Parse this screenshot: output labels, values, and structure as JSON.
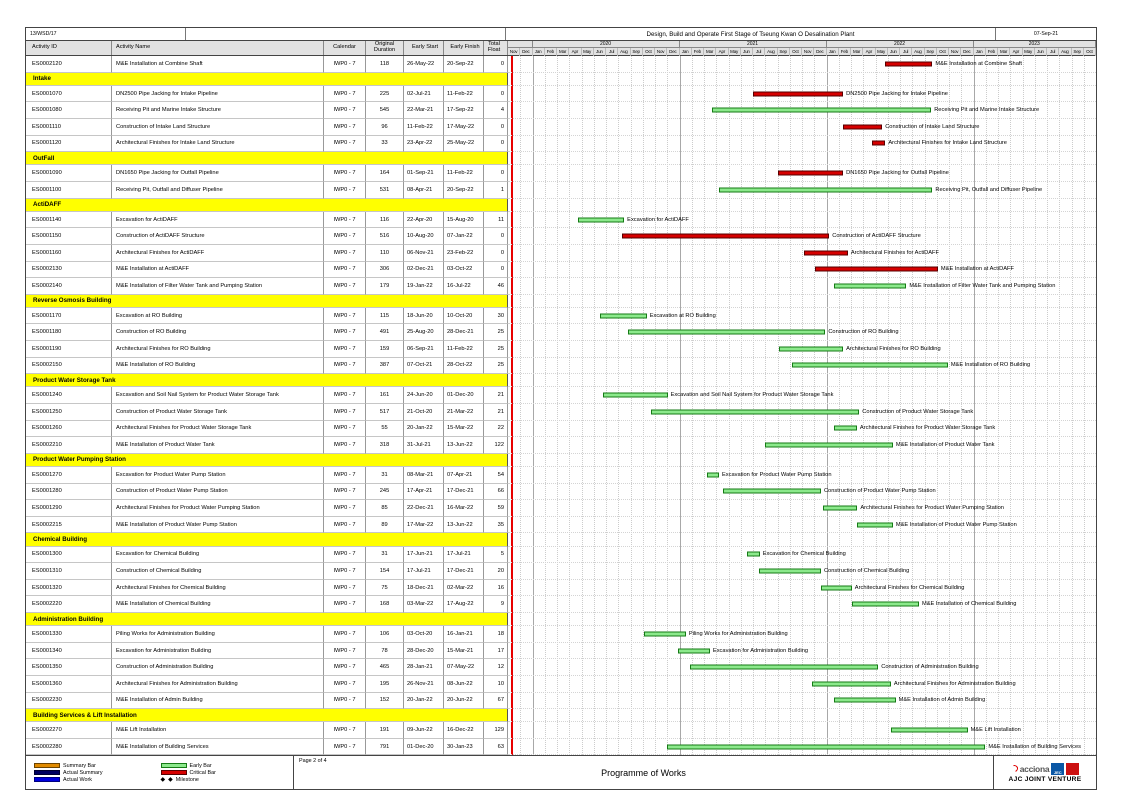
{
  "header": {
    "contract_no": "13/WSD/17",
    "title": "Design, Build and Operate First Stage of Tseung Kwan O Desalination Plant",
    "date": "07-Sep-21"
  },
  "columns": {
    "activity_id": "Activity ID",
    "activity_name": "Activity Name",
    "calendar": "Calendar",
    "original_duration": "Original Duration",
    "early_start": "Early Start",
    "early_finish": "Early Finish",
    "total_float": "Total Float"
  },
  "chart_data": {
    "type": "bar",
    "subtype": "gantt",
    "title": "Programme of Works",
    "timeline": {
      "start": "Nov-2019",
      "end": "Oct-2023",
      "months_total": 48,
      "year_segments": [
        {
          "label": "",
          "months": 2
        },
        {
          "label": "2020",
          "months": 12
        },
        {
          "label": "2021",
          "months": 12
        },
        {
          "label": "2022",
          "months": 12
        },
        {
          "label": "2023",
          "months": 10
        }
      ],
      "month_labels": [
        "Nov",
        "Dec",
        "Jan",
        "Feb",
        "Mar",
        "Apr",
        "May",
        "Jun",
        "Jul",
        "Aug",
        "Sep",
        "Oct",
        "Nov",
        "Dec",
        "Jan",
        "Feb",
        "Mar",
        "Apr",
        "May",
        "Jun",
        "Jul",
        "Aug",
        "Sep",
        "Oct",
        "Nov",
        "Dec",
        "Jan",
        "Feb",
        "Mar",
        "Apr",
        "May",
        "Jun",
        "Jul",
        "Aug",
        "Sep",
        "Oct",
        "Nov",
        "Dec",
        "Jan",
        "Feb",
        "Mar",
        "Apr",
        "May",
        "Jun",
        "Jul",
        "Aug",
        "Sep",
        "Oct"
      ],
      "data_date_line": "Nov-2019"
    },
    "sections": [
      {
        "band": null,
        "tasks": [
          {
            "id": "ES0002120",
            "name": "M&E Installation at Combine Shaft",
            "calendar": "IWP0 - 7",
            "duration": 118,
            "start": "26-May-22",
            "finish": "20-Sep-22",
            "float": 0
          }
        ]
      },
      {
        "band": "Intake",
        "tasks": [
          {
            "id": "ES0001070",
            "name": "DN2500 Pipe Jacking for Intake Pipeline",
            "calendar": "IWP0 - 7",
            "duration": 225,
            "start": "02-Jul-21",
            "finish": "11-Feb-22",
            "float": 0
          },
          {
            "id": "ES0001080",
            "name": "Receiving Pit and Marine Intake Structure",
            "calendar": "IWP0 - 7",
            "duration": 545,
            "start": "22-Mar-21",
            "finish": "17-Sep-22",
            "float": 4
          },
          {
            "id": "ES0001110",
            "name": "Construction of Intake Land Structure",
            "calendar": "IWP0 - 7",
            "duration": 96,
            "start": "11-Feb-22",
            "finish": "17-May-22",
            "float": 0
          },
          {
            "id": "ES0001120",
            "name": "Architectural Finishes for Intake Land Structure",
            "calendar": "IWP0 - 7",
            "duration": 33,
            "start": "23-Apr-22",
            "finish": "25-May-22",
            "float": 0
          }
        ]
      },
      {
        "band": "OutFall",
        "tasks": [
          {
            "id": "ES0001090",
            "name": "DN1650 Pipe Jacking for Outfall Pipeline",
            "calendar": "IWP0 - 7",
            "duration": 164,
            "start": "01-Sep-21",
            "finish": "11-Feb-22",
            "float": 0
          },
          {
            "id": "ES0001100",
            "name": "Receiving Pit, Outfall and Diffuser Pipeline",
            "calendar": "IWP0 - 7",
            "duration": 531,
            "start": "08-Apr-21",
            "finish": "20-Sep-22",
            "float": 1
          }
        ]
      },
      {
        "band": "ActiDAFF",
        "tasks": [
          {
            "id": "ES0001140",
            "name": "Excavation for ActiDAFF",
            "calendar": "IWP0 - 7",
            "duration": 116,
            "start": "22-Apr-20",
            "finish": "15-Aug-20",
            "float": 11
          },
          {
            "id": "ES0001150",
            "name": "Construction of ActiDAFF Structure",
            "calendar": "IWP0 - 7",
            "duration": 516,
            "start": "10-Aug-20",
            "finish": "07-Jan-22",
            "float": 0
          },
          {
            "id": "ES0001160",
            "name": "Architectural Finishes for ActiDAFF",
            "calendar": "IWP0 - 7",
            "duration": 110,
            "start": "06-Nov-21",
            "finish": "23-Feb-22",
            "float": 0
          },
          {
            "id": "ES0002130",
            "name": "M&E Installation at ActiDAFF",
            "calendar": "IWP0 - 7",
            "duration": 306,
            "start": "02-Dec-21",
            "finish": "03-Oct-22",
            "float": 0
          },
          {
            "id": "ES0002140",
            "name": "M&E Installation of Filter Water Tank and Pumping Station",
            "calendar": "IWP0 - 7",
            "duration": 179,
            "start": "19-Jan-22",
            "finish": "16-Jul-22",
            "float": 46
          }
        ]
      },
      {
        "band": "Reverse Osmosis Building",
        "tasks": [
          {
            "id": "ES0001170",
            "name": "Excavation at RO Building",
            "calendar": "IWP0 - 7",
            "duration": 115,
            "start": "18-Jun-20",
            "finish": "10-Oct-20",
            "float": 30
          },
          {
            "id": "ES0001180",
            "name": "Construction of RO Building",
            "calendar": "IWP0 - 7",
            "duration": 491,
            "start": "25-Aug-20",
            "finish": "28-Dec-21",
            "float": 25
          },
          {
            "id": "ES0001190",
            "name": "Architectural Finishes for RO Building",
            "calendar": "IWP0 - 7",
            "duration": 159,
            "start": "06-Sep-21",
            "finish": "11-Feb-22",
            "float": 25
          },
          {
            "id": "ES0002150",
            "name": "M&E Installation of RO Building",
            "calendar": "IWP0 - 7",
            "duration": 387,
            "start": "07-Oct-21",
            "finish": "28-Oct-22",
            "float": 25
          }
        ]
      },
      {
        "band": "Product Water Storage Tank",
        "tasks": [
          {
            "id": "ES0001240",
            "name": "Excavation and Soil Nail System for Product Water Storage Tank",
            "calendar": "IWP0 - 7",
            "duration": 161,
            "start": "24-Jun-20",
            "finish": "01-Dec-20",
            "float": 21
          },
          {
            "id": "ES0001250",
            "name": "Construction of Product Water Storage Tank",
            "calendar": "IWP0 - 7",
            "duration": 517,
            "start": "21-Oct-20",
            "finish": "21-Mar-22",
            "float": 21
          },
          {
            "id": "ES0001260",
            "name": "Architectural Finishes for Product Water Storage Tank",
            "calendar": "IWP0 - 7",
            "duration": 55,
            "start": "20-Jan-22",
            "finish": "15-Mar-22",
            "float": 22
          },
          {
            "id": "ES0002210",
            "name": "M&E Installation of Product Water Tank",
            "calendar": "IWP0 - 7",
            "duration": 318,
            "start": "31-Jul-21",
            "finish": "13-Jun-22",
            "float": 122
          }
        ]
      },
      {
        "band": "Product Water Pumping Station",
        "tasks": [
          {
            "id": "ES0001270",
            "name": "Excavation for Product Water Pump Station",
            "calendar": "IWP0 - 7",
            "duration": 31,
            "start": "08-Mar-21",
            "finish": "07-Apr-21",
            "float": 54
          },
          {
            "id": "ES0001280",
            "name": "Construction of Product Water Pump Station",
            "calendar": "IWP0 - 7",
            "duration": 245,
            "start": "17-Apr-21",
            "finish": "17-Dec-21",
            "float": 66
          },
          {
            "id": "ES0001290",
            "name": "Architectural Finishes for Product Water Pumping Station",
            "calendar": "IWP0 - 7",
            "duration": 85,
            "start": "22-Dec-21",
            "finish": "16-Mar-22",
            "float": 59
          },
          {
            "id": "ES0002215",
            "name": "M&E Installation of Product Water Pump Station",
            "calendar": "IWP0 - 7",
            "duration": 89,
            "start": "17-Mar-22",
            "finish": "13-Jun-22",
            "float": 35
          }
        ]
      },
      {
        "band": "Chemical Building",
        "tasks": [
          {
            "id": "ES0001300",
            "name": "Excavation for Chemical Building",
            "calendar": "IWP0 - 7",
            "duration": 31,
            "start": "17-Jun-21",
            "finish": "17-Jul-21",
            "float": 5
          },
          {
            "id": "ES0001310",
            "name": "Construction of Chemical Building",
            "calendar": "IWP0 - 7",
            "duration": 154,
            "start": "17-Jul-21",
            "finish": "17-Dec-21",
            "float": 20
          },
          {
            "id": "ES0001320",
            "name": "Architectural Finishes for Chemical Building",
            "calendar": "IWP0 - 7",
            "duration": 75,
            "start": "18-Dec-21",
            "finish": "02-Mar-22",
            "float": 16
          },
          {
            "id": "ES0002220",
            "name": "M&E Installation of Chemical Building",
            "calendar": "IWP0 - 7",
            "duration": 168,
            "start": "03-Mar-22",
            "finish": "17-Aug-22",
            "float": 9
          }
        ]
      },
      {
        "band": "Administration Building",
        "tasks": [
          {
            "id": "ES0001330",
            "name": "Piling Works for Administration Building",
            "calendar": "IWP0 - 7",
            "duration": 106,
            "start": "03-Oct-20",
            "finish": "16-Jan-21",
            "float": 18
          },
          {
            "id": "ES0001340",
            "name": "Excavation for Administration Building",
            "calendar": "IWP0 - 7",
            "duration": 78,
            "start": "28-Dec-20",
            "finish": "15-Mar-21",
            "float": 17
          },
          {
            "id": "ES0001350",
            "name": "Construction of Administration Building",
            "calendar": "IWP0 - 7",
            "duration": 465,
            "start": "28-Jan-21",
            "finish": "07-May-22",
            "float": 12
          },
          {
            "id": "ES0001360",
            "name": "Architectural Finishes for Administration Building",
            "calendar": "IWP0 - 7",
            "duration": 195,
            "start": "26-Nov-21",
            "finish": "08-Jun-22",
            "float": 10
          },
          {
            "id": "ES0002230",
            "name": "M&E Installation of Admin Building",
            "calendar": "IWP0 - 7",
            "duration": 152,
            "start": "20-Jan-22",
            "finish": "20-Jun-22",
            "float": 67
          }
        ]
      },
      {
        "band": "Building Services & Lift Installation",
        "tasks": [
          {
            "id": "ES0002270",
            "name": "M&E Lift Installation",
            "calendar": "IWP0 - 7",
            "duration": 191,
            "start": "09-Jun-22",
            "finish": "16-Dec-22",
            "float": 129
          },
          {
            "id": "ES0002280",
            "name": "M&E Installation of Building Services",
            "calendar": "IWP0 - 7",
            "duration": 791,
            "start": "01-Dec-20",
            "finish": "30-Jan-23",
            "float": 63
          }
        ]
      }
    ]
  },
  "legend": {
    "items": [
      {
        "label": "Summary Bar",
        "swatch": "bar",
        "color": "#e08a00",
        "border": "#6b4300"
      },
      {
        "label": "Early Bar",
        "swatch": "bar",
        "color": "#8ce98c",
        "border": "#157a15"
      },
      {
        "label": "Actual Summary",
        "swatch": "bar",
        "color": "#000060",
        "border": "#000030"
      },
      {
        "label": "Critical Bar",
        "swatch": "bar",
        "color": "#d60000",
        "border": "#570000"
      },
      {
        "label": "Actual Work",
        "swatch": "bar",
        "color": "#0000dd",
        "border": "#000080"
      },
      {
        "label": "Milestone",
        "swatch": "diamond",
        "color": "#000000",
        "border": "#000000"
      }
    ]
  },
  "footer": {
    "page_label": "Page 2 of 4",
    "center_title": "Programme of Works",
    "logos": {
      "acciona": "acciona",
      "jec": "JEC",
      "joint_venture": "AJC JOINT VENTURE"
    }
  },
  "colors": {
    "band_yellow": "#ffff00",
    "early_bar": "#8ce98c",
    "critical_bar": "#d60000",
    "data_date_line": "#e80000",
    "header_gray": "#e2e2e2"
  }
}
